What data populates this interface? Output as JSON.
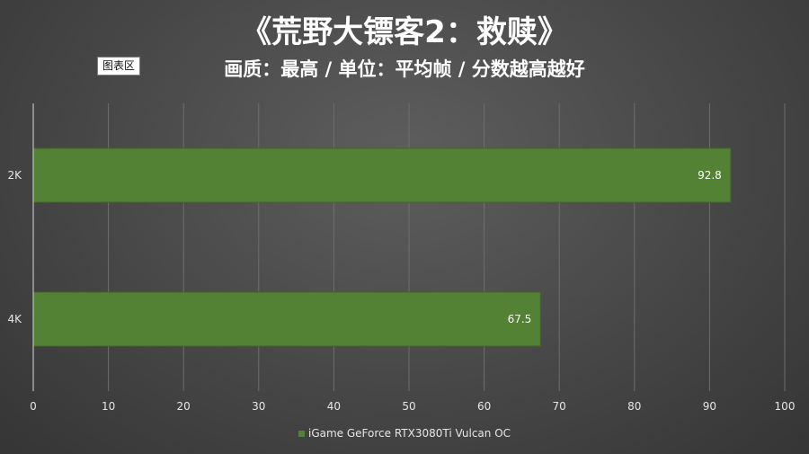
{
  "title": "《荒野大镖客2：救赎》",
  "subtitle": "画质：最高 / 单位：平均帧 / 分数越高越好",
  "chart_area_tag": "图表区",
  "chart_data": {
    "type": "bar",
    "orientation": "horizontal",
    "categories": [
      "2K",
      "4K"
    ],
    "series": [
      {
        "name": "iGame GeForce RTX3080Ti Vulcan OC",
        "values": [
          92.8,
          67.5
        ],
        "color": "#548235"
      }
    ],
    "xlim": [
      0,
      100
    ],
    "x_ticks": [
      0,
      10,
      20,
      30,
      40,
      50,
      60,
      70,
      80,
      90,
      100
    ],
    "grid": true,
    "legend_position": "bottom",
    "data_labels": true
  },
  "colors": {
    "bar": "#548235",
    "bar_border": "#3f6428",
    "grid": "#6e6e6e",
    "axis": "#bfbfbf",
    "text": "#e6e6e6"
  }
}
